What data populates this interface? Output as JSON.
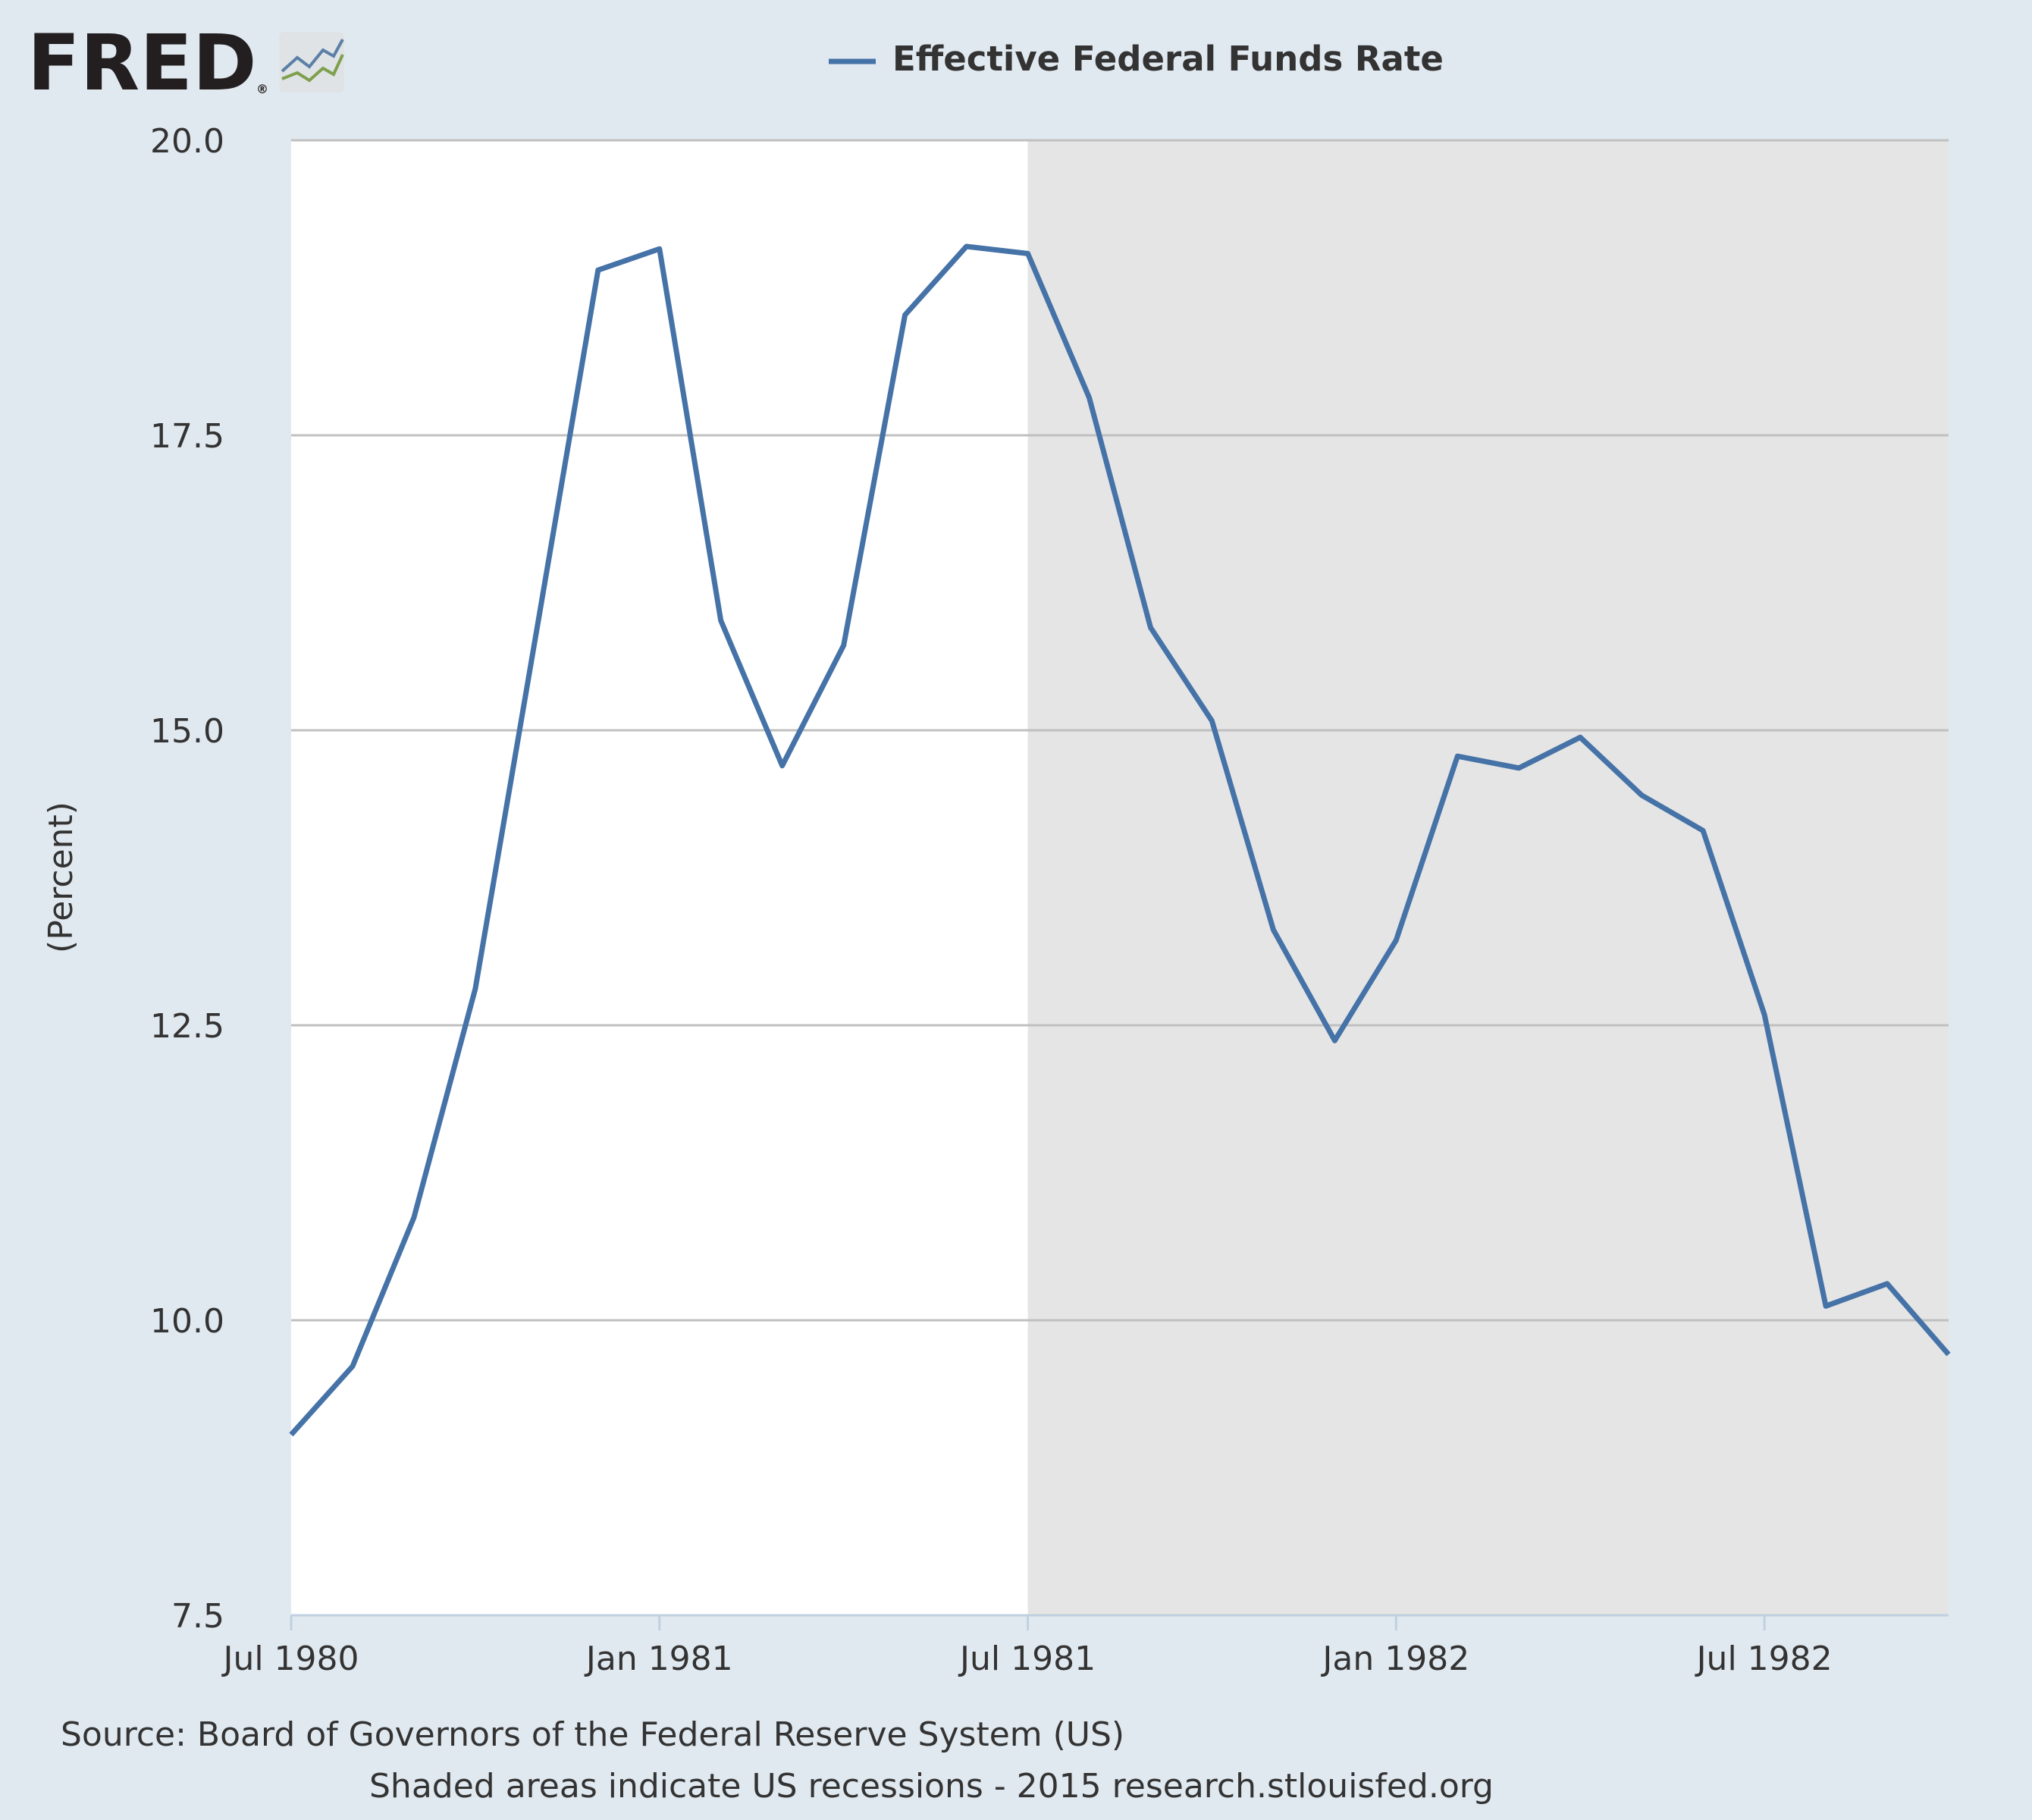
{
  "logo": {
    "text": "FRED",
    "registered": "®"
  },
  "notes": {
    "source": "Source: Board of Governors of the Federal Reserve System (US)",
    "shaded": "Shaded areas indicate US recessions - 2015 research.stlouisfed.org"
  },
  "colors": {
    "background": "#e1e9f0",
    "plot": "#ffffff",
    "recession": "#e5e5e5",
    "series": "#4572a7",
    "grid": "#c0c0c0"
  },
  "chart_data": {
    "type": "line",
    "title": "",
    "xlabel": "",
    "ylabel": "(Percent)",
    "ylim": [
      7.5,
      20.0
    ],
    "yticks": [
      {
        "value": 20.0,
        "label": "20.0"
      },
      {
        "value": 17.5,
        "label": "17.5"
      },
      {
        "value": 15.0,
        "label": "15.0"
      },
      {
        "value": 12.5,
        "label": "12.5"
      },
      {
        "value": 10.0,
        "label": "10.0"
      },
      {
        "value": 7.5,
        "label": "7.5"
      }
    ],
    "xlim": [
      "1980-07-01",
      "1982-10-01"
    ],
    "xticks": [
      {
        "value": "1980-07-01",
        "label": "Jul 1980"
      },
      {
        "value": "1981-01-01",
        "label": "Jan 1981"
      },
      {
        "value": "1981-07-01",
        "label": "Jul 1981"
      },
      {
        "value": "1982-01-01",
        "label": "Jan 1982"
      },
      {
        "value": "1982-07-01",
        "label": "Jul 1982"
      }
    ],
    "grid": true,
    "legend_position": "top",
    "recessions": [
      {
        "start": "1981-07-01",
        "end": "1982-10-01"
      }
    ],
    "series": [
      {
        "name": "Effective Federal Funds Rate",
        "color": "#4572a7",
        "x": [
          "1980-07-01",
          "1980-08-01",
          "1980-09-01",
          "1980-10-01",
          "1980-11-01",
          "1980-12-01",
          "1981-01-01",
          "1981-02-01",
          "1981-03-01",
          "1981-04-01",
          "1981-05-01",
          "1981-06-01",
          "1981-07-01",
          "1981-08-01",
          "1981-09-01",
          "1981-10-01",
          "1981-11-01",
          "1981-12-01",
          "1982-01-01",
          "1982-02-01",
          "1982-03-01",
          "1982-04-01",
          "1982-05-01",
          "1982-06-01",
          "1982-07-01",
          "1982-08-01",
          "1982-09-01",
          "1982-10-01"
        ],
        "y": [
          9.03,
          9.61,
          10.87,
          12.81,
          15.85,
          18.9,
          19.08,
          15.93,
          14.7,
          15.72,
          18.52,
          19.1,
          19.04,
          17.82,
          15.87,
          15.08,
          13.31,
          12.37,
          13.22,
          14.78,
          14.68,
          14.94,
          14.45,
          14.15,
          12.59,
          10.12,
          10.31,
          9.71
        ]
      }
    ]
  }
}
